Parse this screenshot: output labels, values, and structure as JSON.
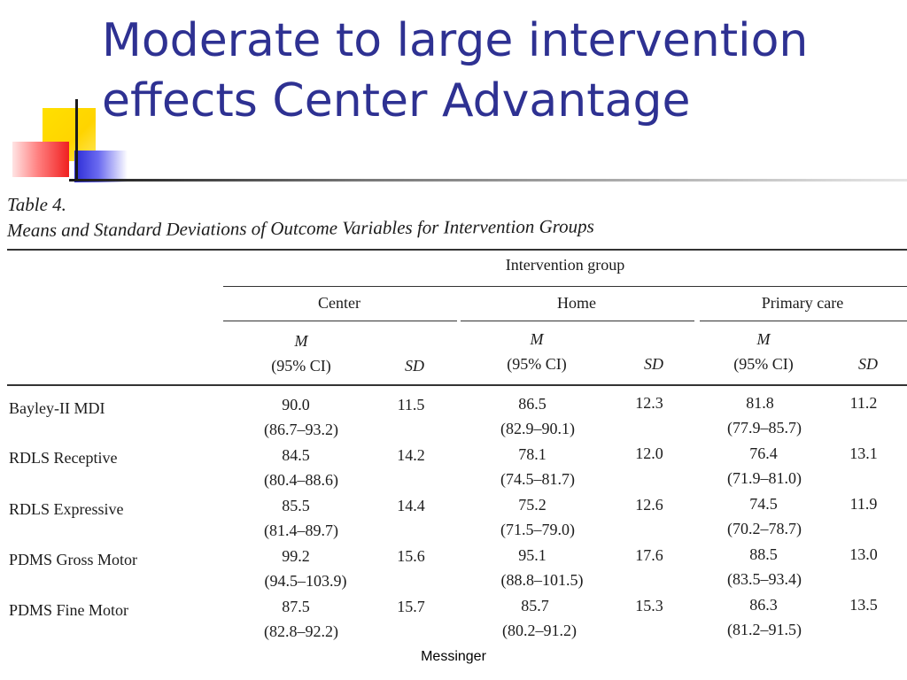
{
  "slide": {
    "title_line1": "Moderate to large intervention",
    "title_line2": "effects Center Advantage",
    "footer": "Messinger"
  },
  "table": {
    "caption_label": "Table 4.",
    "caption_title": "Means and Standard Deviations of Outcome Variables for Intervention Groups",
    "spanner": "Intervention group",
    "groups": [
      "Center",
      "Home",
      "Primary care"
    ],
    "col_m": "M",
    "col_ci": "(95% CI)",
    "col_sd": "SD",
    "rows": [
      {
        "label": "Bayley-II MDI",
        "center": {
          "m": "90.0",
          "ci": "(86.7–93.2)",
          "sd": "11.5"
        },
        "home": {
          "m": "86.5",
          "ci": "(82.9–90.1)",
          "sd": "12.3"
        },
        "primary": {
          "m": "81.8",
          "ci": "(77.9–85.7)",
          "sd": "11.2"
        }
      },
      {
        "label": "RDLS Receptive",
        "center": {
          "m": "84.5",
          "ci": "(80.4–88.6)",
          "sd": "14.2"
        },
        "home": {
          "m": "78.1",
          "ci": "(74.5–81.7)",
          "sd": "12.0"
        },
        "primary": {
          "m": "76.4",
          "ci": "(71.9–81.0)",
          "sd": "13.1"
        }
      },
      {
        "label": "RDLS Expressive",
        "center": {
          "m": "85.5",
          "ci": "(81.4–89.7)",
          "sd": "14.4"
        },
        "home": {
          "m": "75.2",
          "ci": "(71.5–79.0)",
          "sd": "12.6"
        },
        "primary": {
          "m": "74.5",
          "ci": "(70.2–78.7)",
          "sd": "11.9"
        }
      },
      {
        "label": "PDMS Gross Motor",
        "center": {
          "m": "99.2",
          "ci": "(94.5–103.9)",
          "sd": "15.6"
        },
        "home": {
          "m": "95.1",
          "ci": "(88.8–101.5)",
          "sd": "17.6"
        },
        "primary": {
          "m": "88.5",
          "ci": "(83.5–93.4)",
          "sd": "13.0"
        }
      },
      {
        "label": "PDMS Fine Motor",
        "center": {
          "m": "87.5",
          "ci": "(82.8–92.2)",
          "sd": "15.7"
        },
        "home": {
          "m": "85.7",
          "ci": "(80.2–91.2)",
          "sd": "15.3"
        },
        "primary": {
          "m": "86.3",
          "ci": "(81.2–91.5)",
          "sd": "13.5"
        }
      }
    ]
  }
}
